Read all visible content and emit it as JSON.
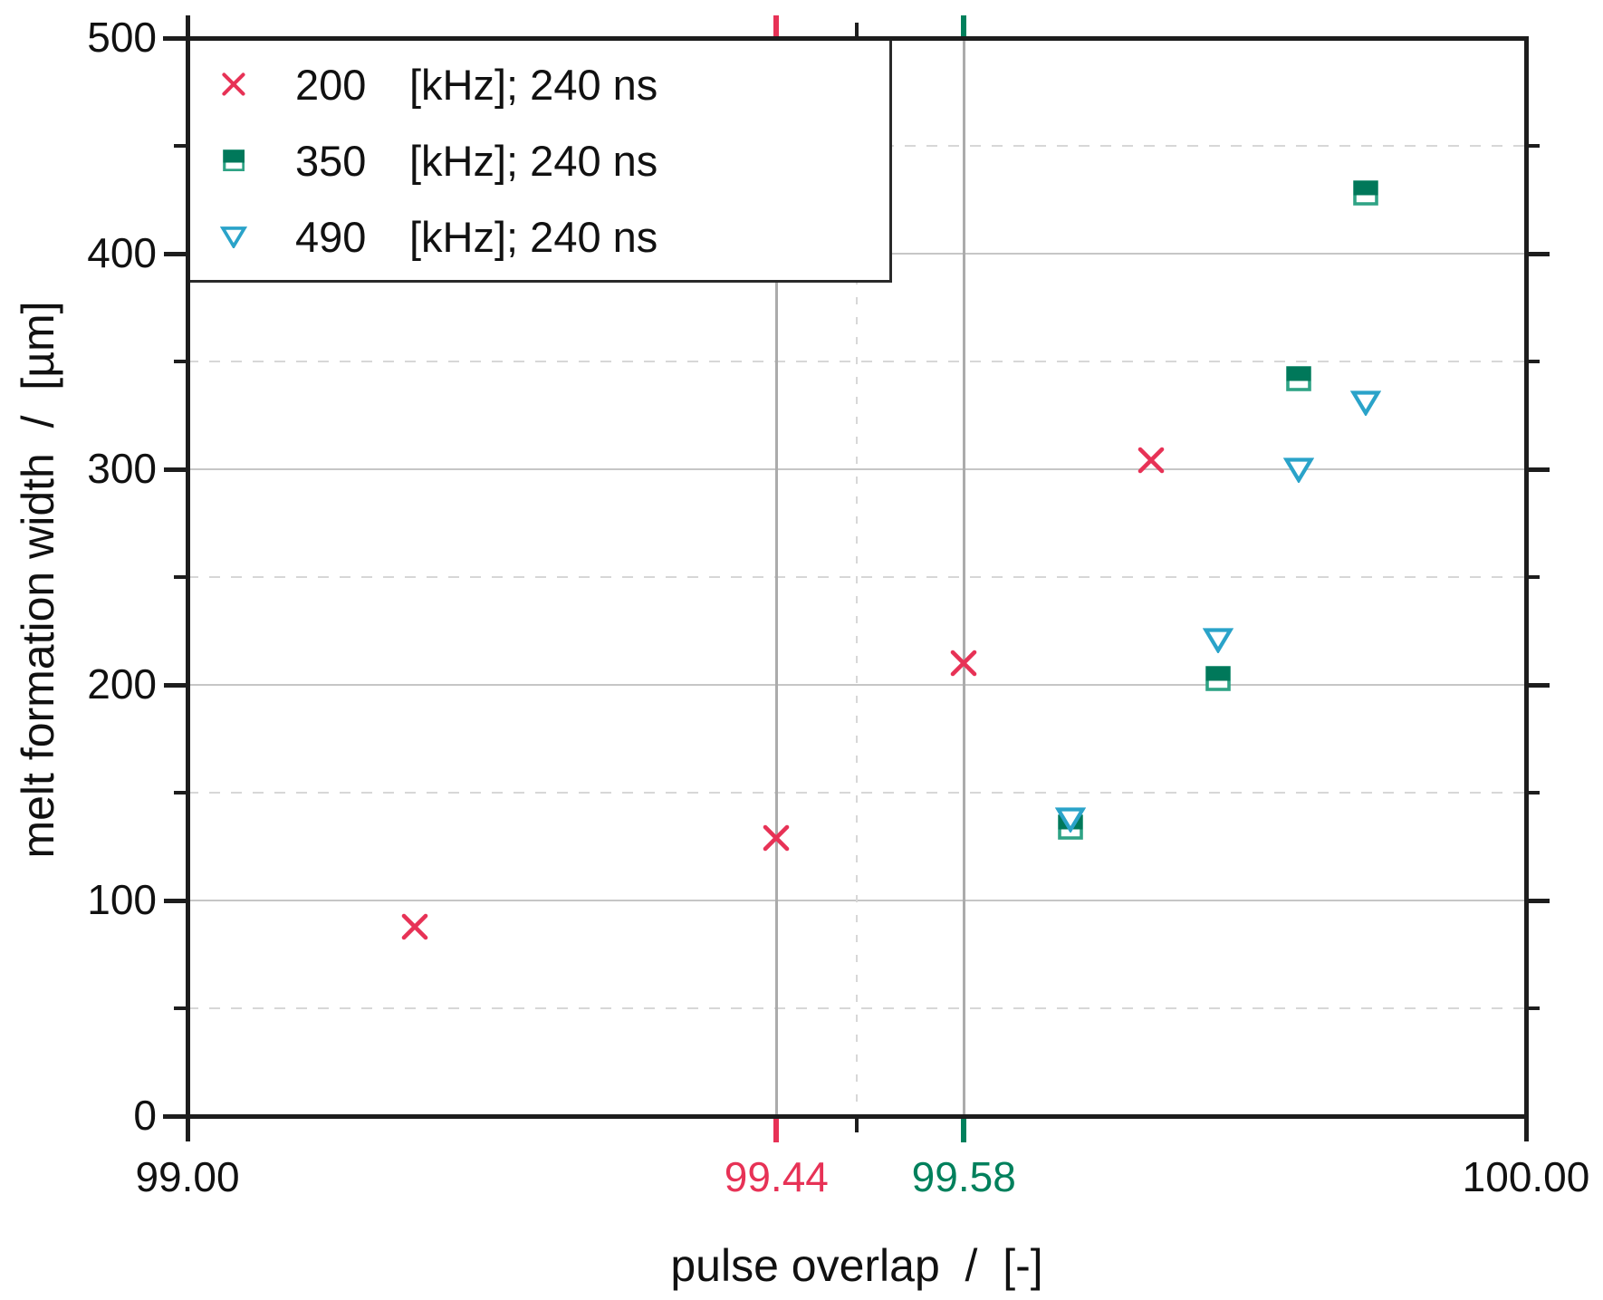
{
  "figure": {
    "y_axis_title": "melt formation width  /  [µm]",
    "x_axis_title": "pulse overlap  /  [-]",
    "colors": {
      "red": "#E73256",
      "green_fill": "#00785A",
      "green_outline": "#2FA385",
      "green_text": "#00805C",
      "cyan": "#2AA3C9",
      "axis": "#1D1D1D",
      "text": "#111111",
      "grid_solid_h": "#C6C6C6",
      "grid_solid_v": "#ABABAB",
      "grid_dashed": "#D7D7D7"
    }
  },
  "chart_data": {
    "type": "scatter",
    "title": "",
    "xlabel": "pulse overlap / [-]",
    "ylabel": "melt formation width / [µm]",
    "xlim": [
      99.0,
      100.0
    ],
    "ylim": [
      0,
      500
    ],
    "grid": {
      "y_solid": [
        100,
        200,
        300,
        400
      ],
      "y_dashed": [
        50,
        150,
        250,
        350,
        450
      ],
      "x_solid": [
        99.44,
        99.58
      ],
      "x_dashed": [
        99.5
      ]
    },
    "y_ticks": {
      "major": [
        0,
        100,
        200,
        300,
        400,
        500
      ],
      "minor": [
        50,
        150,
        250,
        350,
        450
      ],
      "labels": [
        "0",
        "100",
        "200",
        "300",
        "400",
        "500"
      ]
    },
    "x_ticks": [
      {
        "value": 99.0,
        "label": "99.00",
        "color_key": "text",
        "kind": "major"
      },
      {
        "value": 99.44,
        "label": "99.44",
        "color_key": "red",
        "kind": "special"
      },
      {
        "value": 99.5,
        "label": "",
        "color_key": "axis",
        "kind": "minor"
      },
      {
        "value": 99.58,
        "label": "99.58",
        "color_key": "green_text",
        "kind": "special"
      },
      {
        "value": 100.0,
        "label": "100.00",
        "color_key": "text",
        "kind": "major"
      }
    ],
    "legend_position": "top-left",
    "series": [
      {
        "name": "200 [kHz]; 240 ns",
        "legend_value": "200",
        "legend_suffix": "[kHz]; 240 ns",
        "marker": "x-cross",
        "color_key": "red",
        "points": [
          [
            99.17,
            88
          ],
          [
            99.44,
            129
          ],
          [
            99.58,
            210
          ],
          [
            99.72,
            304
          ]
        ]
      },
      {
        "name": "350 [kHz]; 240 ns",
        "legend_value": "350",
        "legend_suffix": "[kHz]; 240 ns",
        "marker": "half-filled-square",
        "color_key": "green_fill",
        "outline_key": "green_outline",
        "points": [
          [
            99.66,
            134
          ],
          [
            99.77,
            203
          ],
          [
            99.83,
            342
          ],
          [
            99.88,
            428
          ]
        ]
      },
      {
        "name": "490 [kHz]; 240 ns",
        "legend_value": "490",
        "legend_suffix": "[kHz]; 240 ns",
        "marker": "open-triangle-down",
        "color_key": "cyan",
        "points": [
          [
            99.66,
            138
          ],
          [
            99.77,
            221
          ],
          [
            99.83,
            300
          ],
          [
            99.88,
            331
          ]
        ]
      }
    ]
  }
}
